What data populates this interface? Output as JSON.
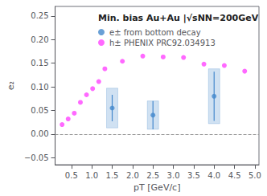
{
  "chart_data": {
    "type": "scatter",
    "title": "Min. bias Au+Au |√sNN=200GeV",
    "x_label": "pT [GeV/c]",
    "y_label": "e₂",
    "xlim": [
      0.1,
      5.1
    ],
    "ylim": [
      -0.065,
      0.27
    ],
    "xticks": [
      0.5,
      {
        "value": 1.0,
        "label": "1.0"
      },
      1.5,
      {
        "value": 2.0,
        "label": "2.0"
      },
      2.5,
      {
        "value": 3.0,
        "label": "3.0"
      },
      3.5,
      {
        "value": 4.0,
        "label": "4.0"
      },
      4.5,
      {
        "value": 5.0,
        "label": "5.0"
      }
    ],
    "yticks": [
      {
        "value": -0.05,
        "label": "−0.05"
      },
      {
        "value": 0.0,
        "label": "0.00"
      },
      0.05,
      {
        "value": 0.1,
        "label": "0.10"
      },
      0.15,
      {
        "value": 0.2,
        "label": "0.20"
      },
      0.25
    ],
    "grid": false,
    "legend": "upper left",
    "hlines": [
      0
    ],
    "series": [
      {
        "name": "e± from bottom decay",
        "color": "#4488cc",
        "marker": "circle",
        "x": [
          1.5,
          2.5,
          4.0
        ],
        "values": [
          0.055,
          0.04,
          0.08
        ],
        "stat_err": [
          0.028,
          0.03,
          0.052
        ],
        "sys_err": [
          0.042,
          0.03,
          0.058
        ]
      },
      {
        "name": "h± PHENIX PRC92.034913",
        "color": "#ff44ff",
        "marker": "circle",
        "x": [
          0.27,
          0.42,
          0.57,
          0.72,
          0.87,
          1.02,
          1.17,
          1.32,
          1.75,
          2.25,
          2.75,
          3.25,
          3.75,
          4.25,
          4.75
        ],
        "values": [
          0.02,
          0.032,
          0.044,
          0.067,
          0.083,
          0.096,
          0.111,
          0.138,
          0.154,
          0.165,
          0.163,
          0.162,
          0.148,
          0.145,
          0.133
        ]
      }
    ]
  }
}
